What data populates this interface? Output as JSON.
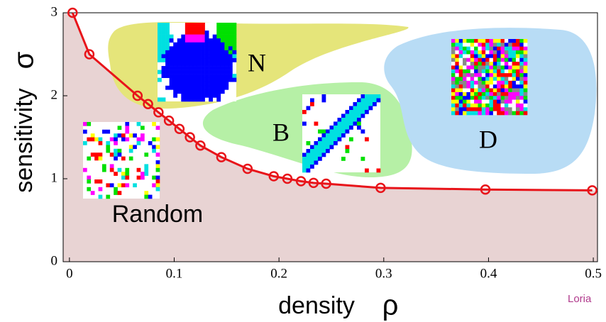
{
  "chart_data": {
    "type": "line",
    "x_label": "density",
    "x_symbol": "ρ",
    "x_symbol_color": "#1a1adf",
    "y_label": "sensitivity",
    "y_symbol": "σ",
    "y_symbol_color": "#e8141a",
    "x": [
      0.003,
      0.019,
      0.065,
      0.075,
      0.085,
      0.095,
      0.105,
      0.115,
      0.125,
      0.145,
      0.17,
      0.195,
      0.208,
      0.221,
      0.233,
      0.245,
      0.297,
      0.397,
      0.499
    ],
    "series": [
      {
        "color": "#e8141a",
        "values": [
          3.0,
          2.5,
          2.0,
          1.9,
          1.8,
          1.7,
          1.6,
          1.5,
          1.4,
          1.26,
          1.12,
          1.03,
          1.0,
          0.97,
          0.95,
          0.94,
          0.89,
          0.87,
          0.86
        ]
      }
    ],
    "area_color": "#e8d3d3",
    "xlim": [
      -0.006,
      0.504
    ],
    "ylim": [
      0,
      3
    ],
    "xticks": [
      0,
      0.1,
      0.2,
      0.3,
      0.4,
      0.5
    ],
    "yticks": [
      0,
      1,
      2,
      3
    ],
    "annotations": [
      "N",
      "B",
      "D",
      "Random"
    ],
    "logo": "Loria"
  }
}
